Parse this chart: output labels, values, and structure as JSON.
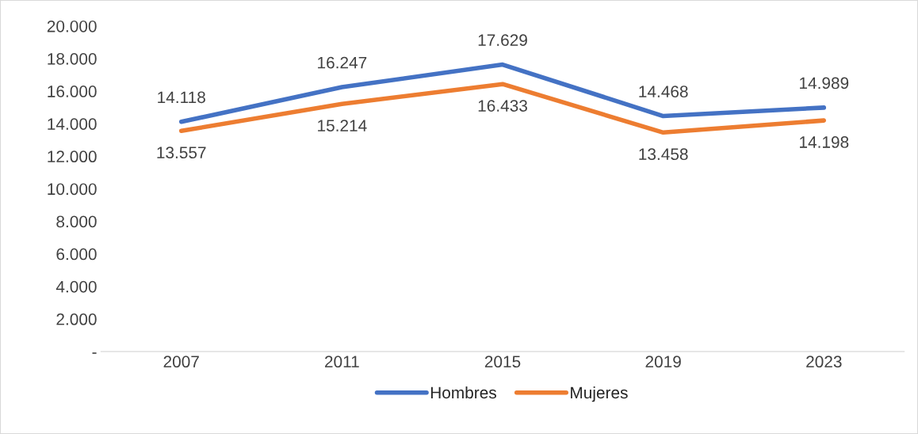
{
  "chart_data": {
    "type": "line",
    "categories": [
      "2007",
      "2011",
      "2015",
      "2019",
      "2023"
    ],
    "series": [
      {
        "name": "Hombres",
        "color": "#4472c4",
        "values": [
          14118,
          16247,
          17629,
          14468,
          14989
        ],
        "value_labels": [
          "14.118",
          "16.247",
          "17.629",
          "14.468",
          "14.989"
        ]
      },
      {
        "name": "Mujeres",
        "color": "#ed7d31",
        "values": [
          13557,
          15214,
          16433,
          13458,
          14198
        ],
        "value_labels": [
          "13.557",
          "15.214",
          "16.433",
          "13.458",
          "14.198"
        ]
      }
    ],
    "ylim": [
      0,
      20000
    ],
    "yticks": [
      {
        "value": 0,
        "label": "-"
      },
      {
        "value": 2000,
        "label": "2.000"
      },
      {
        "value": 4000,
        "label": "4.000"
      },
      {
        "value": 6000,
        "label": "6.000"
      },
      {
        "value": 8000,
        "label": "8.000"
      },
      {
        "value": 10000,
        "label": "10.000"
      },
      {
        "value": 12000,
        "label": "12.000"
      },
      {
        "value": 14000,
        "label": "14.000"
      },
      {
        "value": 16000,
        "label": "16.000"
      },
      {
        "value": 18000,
        "label": "18.000"
      },
      {
        "value": 20000,
        "label": "20.000"
      }
    ],
    "legend": "bottom",
    "marker": "none",
    "line_style": "solid"
  }
}
